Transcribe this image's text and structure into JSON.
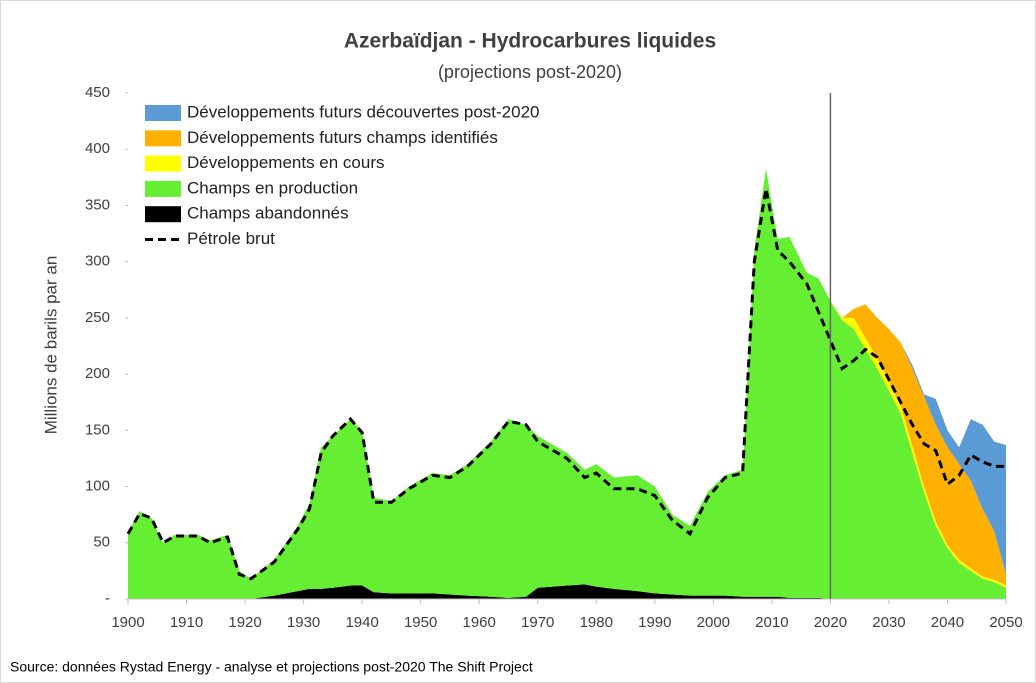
{
  "chart_data": {
    "type": "stacked_area",
    "title": "Azerbaïdjan - Hydrocarbures liquides",
    "subtitle": "(projections post-2020)",
    "y_label": "Millions de barils par an",
    "source": "Source:  données Rystad Energy - analyse et projections post-2020  The Shift Project",
    "x": [
      1900,
      1902,
      1904,
      1906,
      1908,
      1912,
      1914,
      1917,
      1919,
      1921,
      1925,
      1929,
      1931,
      1933,
      1935,
      1938,
      1940,
      1942,
      1945,
      1948,
      1952,
      1955,
      1958,
      1962,
      1965,
      1968,
      1970,
      1975,
      1978,
      1980,
      1983,
      1987,
      1990,
      1993,
      1996,
      1999,
      2002,
      2005,
      2007,
      2009,
      2011,
      2013,
      2016,
      2018,
      2020,
      2022,
      2024,
      2026,
      2028,
      2030,
      2032,
      2034,
      2036,
      2038,
      2040,
      2042,
      2044,
      2046,
      2048,
      2050
    ],
    "series": [
      {
        "name": "Champs abandonnés",
        "color": "#000000",
        "values": [
          0,
          0,
          0,
          0,
          0,
          0,
          0,
          0,
          0,
          0,
          3,
          7,
          9,
          9,
          10,
          12,
          12,
          6,
          5,
          5,
          5,
          4,
          3,
          2,
          1,
          2,
          10,
          12,
          13,
          11,
          9,
          7,
          5,
          4,
          3,
          3,
          3,
          2,
          2,
          2,
          2,
          1,
          1,
          1,
          0,
          0,
          0,
          0,
          0,
          0,
          0,
          0,
          0,
          0,
          0,
          0,
          0,
          0,
          0,
          0
        ]
      },
      {
        "name": "Champs en production",
        "color": "#66ee33",
        "values": [
          60,
          78,
          72,
          50,
          57,
          57,
          52,
          57,
          25,
          18,
          32,
          58,
          76,
          126,
          135,
          148,
          138,
          84,
          82,
          95,
          107,
          106,
          117,
          138,
          159,
          153,
          135,
          118,
          102,
          109,
          99,
          103,
          95,
          71,
          62,
          92,
          107,
          113,
          308,
          381,
          318,
          321,
          289,
          284,
          265,
          248,
          240,
          222,
          205,
          185,
          165,
          130,
          95,
          65,
          45,
          32,
          25,
          18,
          15,
          10
        ]
      },
      {
        "name": "Développements en cours",
        "color": "#ffff00",
        "values": [
          0,
          0,
          0,
          0,
          0,
          0,
          0,
          0,
          0,
          0,
          0,
          0,
          0,
          0,
          0,
          0,
          0,
          0,
          0,
          0,
          0,
          0,
          0,
          0,
          0,
          0,
          0,
          0,
          0,
          0,
          0,
          0,
          0,
          0,
          0,
          0,
          0,
          0,
          0,
          0,
          0,
          0,
          0,
          0,
          0,
          2,
          10,
          10,
          9,
          8,
          7,
          6,
          5,
          4,
          3,
          3,
          2,
          2,
          2,
          2
        ]
      },
      {
        "name": "Développements futurs champs identifiés",
        "color": "#ffb000",
        "values": [
          0,
          0,
          0,
          0,
          0,
          0,
          0,
          0,
          0,
          0,
          0,
          0,
          0,
          0,
          0,
          0,
          0,
          0,
          0,
          0,
          0,
          0,
          0,
          0,
          0,
          0,
          0,
          0,
          0,
          0,
          0,
          0,
          0,
          0,
          0,
          0,
          0,
          0,
          0,
          0,
          0,
          0,
          0,
          0,
          0,
          0,
          8,
          30,
          36,
          47,
          56,
          69,
          80,
          86,
          87,
          85,
          78,
          60,
          43,
          10
        ]
      },
      {
        "name": "Développements futurs découvertes post-2020",
        "color": "#5b9bd5",
        "values": [
          0,
          0,
          0,
          0,
          0,
          0,
          0,
          0,
          0,
          0,
          0,
          0,
          0,
          0,
          0,
          0,
          0,
          0,
          0,
          0,
          0,
          0,
          0,
          0,
          0,
          0,
          0,
          0,
          0,
          0,
          0,
          0,
          0,
          0,
          0,
          0,
          0,
          0,
          0,
          0,
          0,
          0,
          0,
          0,
          0,
          0,
          0,
          0,
          0,
          0,
          0,
          3,
          2,
          23,
          15,
          15,
          55,
          75,
          80,
          115
        ]
      },
      {
        "name": "Pétrole brut",
        "color": "#000000",
        "type": "line",
        "dashed": true,
        "values": [
          58,
          76,
          72,
          50,
          56,
          56,
          50,
          55,
          22,
          18,
          33,
          62,
          80,
          130,
          145,
          160,
          148,
          86,
          86,
          98,
          110,
          108,
          118,
          138,
          158,
          155,
          140,
          125,
          108,
          112,
          98,
          98,
          92,
          70,
          58,
          90,
          108,
          112,
          300,
          365,
          310,
          300,
          280,
          255,
          230,
          205,
          212,
          222,
          215,
          195,
          175,
          155,
          138,
          132,
          102,
          110,
          128,
          122,
          118,
          118
        ]
      }
    ],
    "vertical_line": 2020,
    "xlim": [
      1900,
      2050
    ],
    "xticks": [
      1900,
      1910,
      1920,
      1930,
      1940,
      1950,
      1960,
      1970,
      1980,
      1990,
      2000,
      2010,
      2020,
      2030,
      2040,
      2050
    ],
    "ylim": [
      0,
      450
    ],
    "yticks": [
      {
        "value": 0,
        "label": "-"
      },
      50,
      100,
      150,
      200,
      250,
      300,
      350,
      400,
      450
    ],
    "legend": "top-left"
  }
}
